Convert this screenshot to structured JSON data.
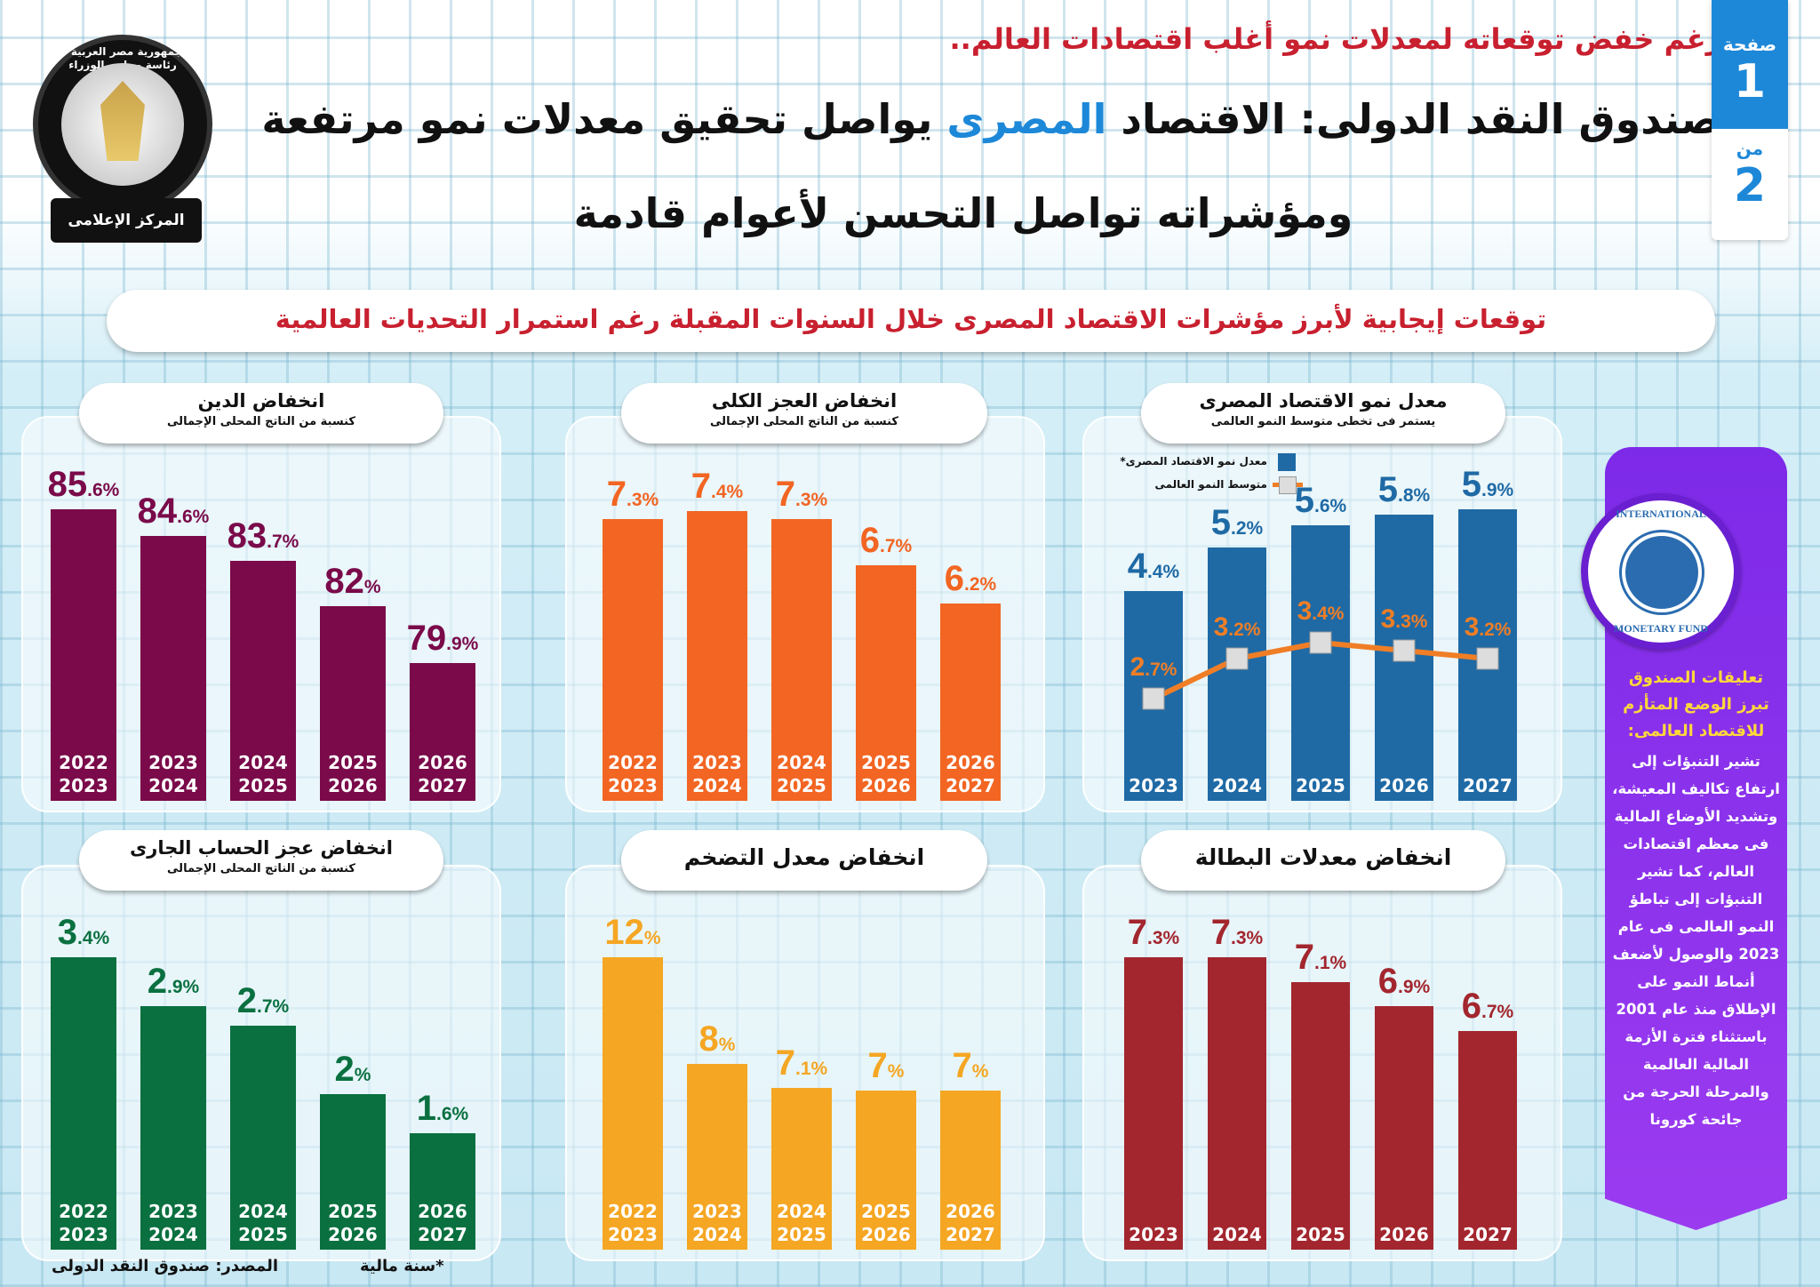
{
  "header": {
    "kicker": "رغم خفض توقعاته لمعدلات نمو أغلب اقتصادات العالم..",
    "title_part1": "صندوق النقد الدولى: الاقتصاد",
    "title_highlight": "المصرى",
    "title_part2": "يواصل تحقيق معدلات نمو مرتفعة",
    "title_line2": "ومؤشراته تواصل التحسن لأعوام قادمة",
    "accent_color": "#1e88d8"
  },
  "page_badge": {
    "page_label": "صفحة",
    "page": "1",
    "of_label": "من",
    "total": "2"
  },
  "logo": {
    "ring_text": "جمهورية مصر العربية - رئاسة مجلس الوزراء",
    "ribbon": "المركز الإعلامى"
  },
  "banner": "توقعات إيجابية لأبرز مؤشرات الاقتصاد المصرى خلال السنوات المقبلة رغم استمرار التحديات العالمية",
  "side_panel": {
    "logo_text_top": "INTERNATIONAL",
    "logo_text_bottom": "MONETARY FUND",
    "heading": "تعليقات الصندوق تبرز الوضع المتأزم للاقتصاد العالمى:",
    "body": "تشير التنبؤات إلى ارتفاع تكاليف المعيشة، وتشديد الأوضاع المالية فى معظم اقتصادات العالم، كما تشير التنبؤات إلى تباطؤ النمو العالمى فى عام 2023 والوصول لأضعف أنماط النمو على الإطلاق منذ عام 2001 باستثناء فترة الأزمة المالية العالمية والمرحلة الحرجة من جائحة كورونا"
  },
  "footer": {
    "source": "المصدر: صندوق النقد الدولى",
    "note": "*سنة مالية"
  },
  "chart_data": [
    {
      "type": "bar",
      "title": "انخفاض الدين",
      "subtitle": "كنسبة من الناتج المحلى الإجمالى",
      "color": "#7a0a4a",
      "categories": [
        [
          "2022",
          "2023"
        ],
        [
          "2023",
          "2024"
        ],
        [
          "2024",
          "2025"
        ],
        [
          "2025",
          "2026"
        ],
        [
          "2026",
          "2027"
        ]
      ],
      "values": [
        85.6,
        84.6,
        83.7,
        82,
        79.9
      ]
    },
    {
      "type": "bar",
      "title": "انخفاض العجز الكلى",
      "subtitle": "كنسبة من الناتج المحلى الإجمالى",
      "color": "#f26522",
      "categories": [
        [
          "2022",
          "2023"
        ],
        [
          "2023",
          "2024"
        ],
        [
          "2024",
          "2025"
        ],
        [
          "2025",
          "2026"
        ],
        [
          "2026",
          "2027"
        ]
      ],
      "values": [
        7.3,
        7.4,
        7.3,
        6.7,
        6.2
      ]
    },
    {
      "type": "bar",
      "title": "معدل نمو الاقتصاد المصرى",
      "subtitle": "يستمر فى تخطى متوسط النمو العالمى",
      "color": "#1f6aa5",
      "categories": [
        [
          "2023"
        ],
        [
          "2024"
        ],
        [
          "2025"
        ],
        [
          "2026"
        ],
        [
          "2027"
        ]
      ],
      "values": [
        4.4,
        5.2,
        5.6,
        5.8,
        5.9
      ],
      "series": [
        {
          "name": "معدل نمو الاقتصاد المصرى*",
          "type": "bar",
          "color": "#1f6aa5",
          "values": [
            4.4,
            5.2,
            5.6,
            5.8,
            5.9
          ]
        },
        {
          "name": "متوسط النمو العالمى",
          "type": "line",
          "color": "#f07e26",
          "values": [
            2.7,
            3.2,
            3.4,
            3.3,
            3.2
          ]
        }
      ]
    },
    {
      "type": "bar",
      "title": "انخفاض عجز الحساب الجارى",
      "subtitle": "كنسبة من الناتج المحلى الإجمالى",
      "color": "#0a7040",
      "categories": [
        [
          "2022",
          "2023"
        ],
        [
          "2023",
          "2024"
        ],
        [
          "2024",
          "2025"
        ],
        [
          "2025",
          "2026"
        ],
        [
          "2026",
          "2027"
        ]
      ],
      "values": [
        3.4,
        2.9,
        2.7,
        2,
        1.6
      ]
    },
    {
      "type": "bar",
      "title": "انخفاض معدل التضخم",
      "subtitle": "",
      "color": "#f5a623",
      "categories": [
        [
          "2022",
          "2023"
        ],
        [
          "2023",
          "2024"
        ],
        [
          "2024",
          "2025"
        ],
        [
          "2025",
          "2026"
        ],
        [
          "2026",
          "2027"
        ]
      ],
      "values": [
        12,
        8,
        7.1,
        7,
        7
      ]
    },
    {
      "type": "bar",
      "title": "انخفاض معدلات البطالة",
      "subtitle": "",
      "color": "#a3262e",
      "categories": [
        [
          "2023"
        ],
        [
          "2024"
        ],
        [
          "2025"
        ],
        [
          "2026"
        ],
        [
          "2027"
        ]
      ],
      "values": [
        7.3,
        7.3,
        7.1,
        6.9,
        6.7
      ]
    }
  ]
}
